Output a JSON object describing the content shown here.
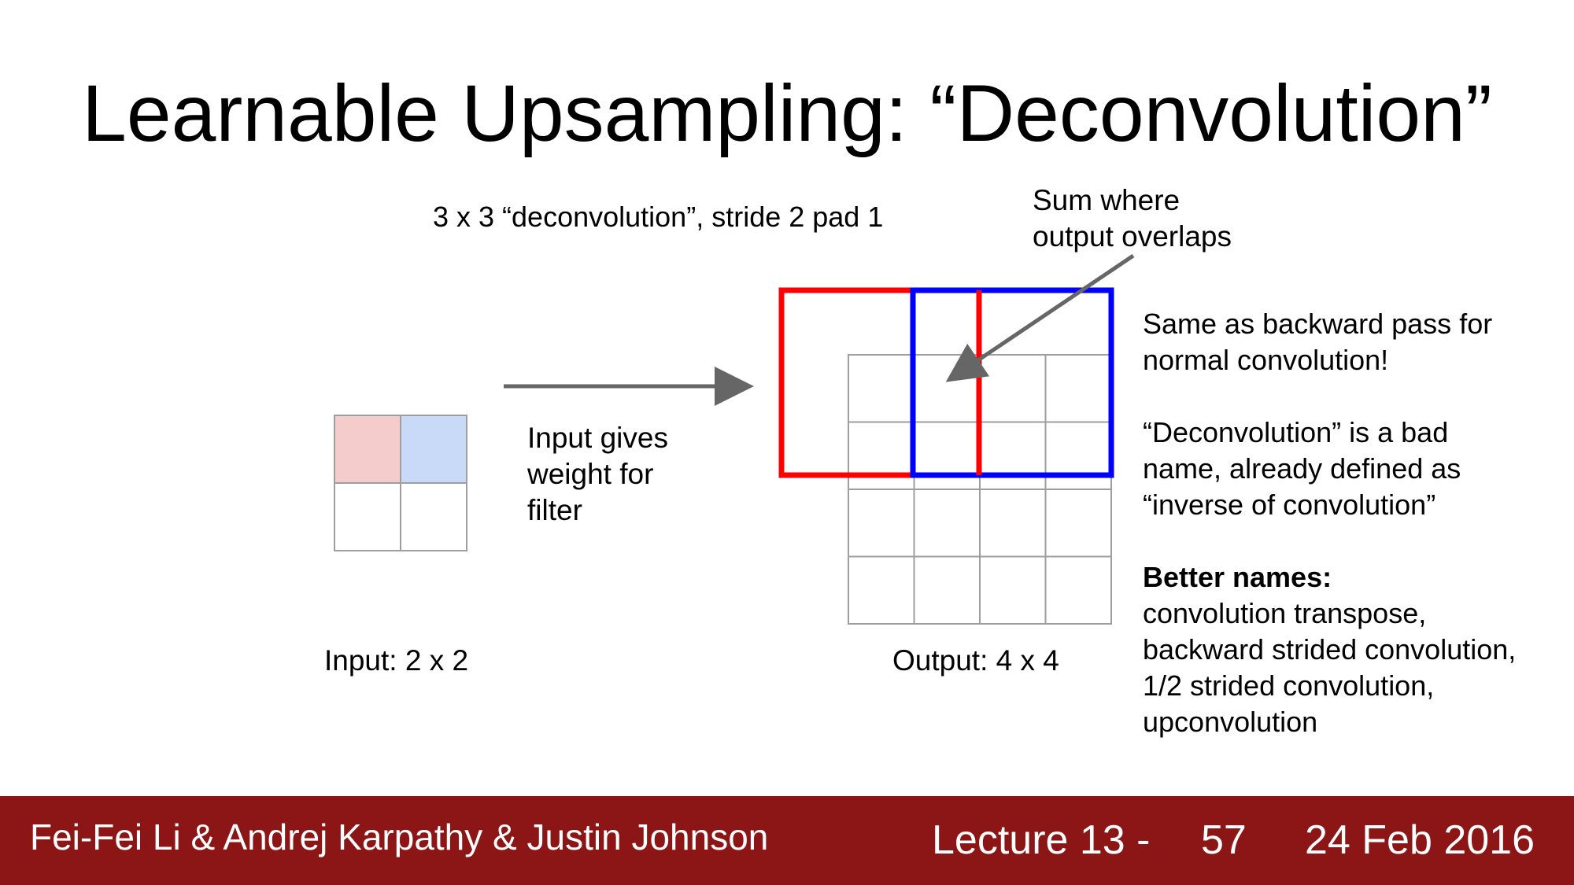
{
  "slide": {
    "title": "Learnable Upsampling: “Deconvolution”",
    "subtitle": "3 x 3 “deconvolution”, stride 2 pad 1",
    "callout": {
      "line1": "Sum where",
      "line2": "output overlaps"
    },
    "input_note": {
      "line1": "Input gives",
      "line2": "weight for",
      "line3": "filter"
    },
    "input_label": "Input: 2 x 2",
    "output_label": "Output: 4 x 4",
    "notes": {
      "p1_line1": "Same as backward pass for",
      "p1_line2": "normal convolution!",
      "p2_line1": "“Deconvolution” is a bad",
      "p2_line2": "name, already defined as",
      "p2_line3": "“inverse of convolution”",
      "p3_heading": "Better names:",
      "p3_line1": "convolution transpose,",
      "p3_line2": "backward strided convolution,",
      "p3_line3": "1/2 strided convolution,",
      "p3_line4": "upconvolution"
    }
  },
  "colors": {
    "input_cell_red": "#f4cccc",
    "input_cell_blue": "#c9daf8",
    "filter_red": "#ff0000",
    "filter_blue": "#0000ff",
    "grid_line": "#9e9e9e",
    "arrow": "#666666",
    "footer_bg": "#8c1515"
  },
  "footer": {
    "authors": "Fei-Fei Li & Andrej Karpathy & Justin Johnson",
    "lecture": "Lecture 13 -",
    "page": "57",
    "date": "24 Feb 2016"
  }
}
